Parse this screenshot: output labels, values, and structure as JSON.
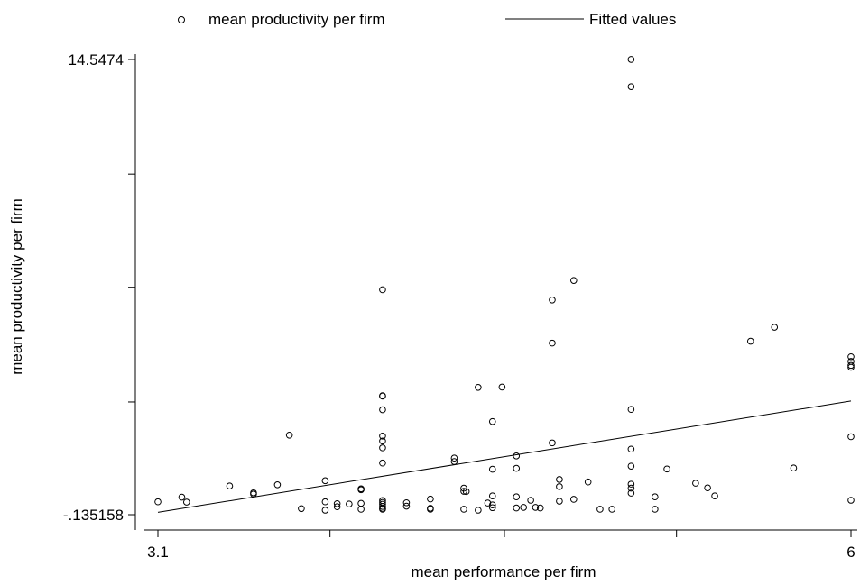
{
  "chart_data": {
    "type": "scatter",
    "title": "",
    "xlabel": "mean performance per firm",
    "ylabel": "mean productivity per firm",
    "xlim": [
      3.1,
      6
    ],
    "ylim": [
      -0.135158,
      14.5474
    ],
    "x_tick_labels": [
      {
        "value": 3.1,
        "label": "3.1"
      },
      {
        "value": 6,
        "label": "6"
      }
    ],
    "x_minor_ticks": [
      3.82,
      4.55,
      5.27
    ],
    "y_tick_labels": [
      {
        "value": 14.5474,
        "label": "14.5474"
      },
      {
        "value": -0.135158,
        "label": "-.135158"
      }
    ],
    "y_minor_ticks": [
      3.5,
      7.2,
      10.85
    ],
    "legend": {
      "position": "top",
      "entries": [
        "mean productivity per firm",
        "Fitted values"
      ]
    },
    "grid": false,
    "series": [
      {
        "name": "mean productivity per firm",
        "type": "scatter",
        "marker": "hollow-circle",
        "color": "#000000",
        "points": [
          [
            3.1,
            0.28
          ],
          [
            3.2,
            0.43
          ],
          [
            3.22,
            0.27
          ],
          [
            3.4,
            0.79
          ],
          [
            3.5,
            0.53
          ],
          [
            3.5,
            0.57
          ],
          [
            3.6,
            0.83
          ],
          [
            3.65,
            2.43
          ],
          [
            3.7,
            0.06
          ],
          [
            3.8,
            0.96
          ],
          [
            3.8,
            0.28
          ],
          [
            3.8,
            0.01
          ],
          [
            3.85,
            0.22
          ],
          [
            3.85,
            0.12
          ],
          [
            3.95,
            0.67
          ],
          [
            3.95,
            0.7
          ],
          [
            3.95,
            0.23
          ],
          [
            3.95,
            0.04
          ],
          [
            3.9,
            0.21
          ],
          [
            4.04,
            7.12
          ],
          [
            4.04,
            3.7
          ],
          [
            4.04,
            3.69
          ],
          [
            4.04,
            3.25
          ],
          [
            4.04,
            2.4
          ],
          [
            4.04,
            2.24
          ],
          [
            4.04,
            2.02
          ],
          [
            4.04,
            1.53
          ],
          [
            4.04,
            0.32
          ],
          [
            4.04,
            0.26
          ],
          [
            4.04,
            0.2
          ],
          [
            4.04,
            0.13
          ],
          [
            4.04,
            0.07
          ],
          [
            4.04,
            0.04
          ],
          [
            4.14,
            0.25
          ],
          [
            4.14,
            0.14
          ],
          [
            4.24,
            0.37
          ],
          [
            4.24,
            0.07
          ],
          [
            4.24,
            0.04
          ],
          [
            4.34,
            1.69
          ],
          [
            4.34,
            1.58
          ],
          [
            4.38,
            0.72
          ],
          [
            4.38,
            0.62
          ],
          [
            4.39,
            0.61
          ],
          [
            4.38,
            0.04
          ],
          [
            4.44,
            3.97
          ],
          [
            4.44,
            0.01
          ],
          [
            4.48,
            0.24
          ],
          [
            4.5,
            2.87
          ],
          [
            4.5,
            1.33
          ],
          [
            4.5,
            0.47
          ],
          [
            4.5,
            0.18
          ],
          [
            4.5,
            0.09
          ],
          [
            4.54,
            3.98
          ],
          [
            4.6,
            1.76
          ],
          [
            4.6,
            1.36
          ],
          [
            4.6,
            0.44
          ],
          [
            4.6,
            0.08
          ],
          [
            4.63,
            0.1
          ],
          [
            4.66,
            0.33
          ],
          [
            4.68,
            0.1
          ],
          [
            4.7,
            0.08
          ],
          [
            4.75,
            6.79
          ],
          [
            4.75,
            5.4
          ],
          [
            4.75,
            2.18
          ],
          [
            4.78,
            1.0
          ],
          [
            4.78,
            0.77
          ],
          [
            4.78,
            0.3
          ],
          [
            4.84,
            7.42
          ],
          [
            4.84,
            0.36
          ],
          [
            4.9,
            0.92
          ],
          [
            4.95,
            0.04
          ],
          [
            5.0,
            0.04
          ],
          [
            5.08,
            14.55
          ],
          [
            5.08,
            13.67
          ],
          [
            5.08,
            3.26
          ],
          [
            5.08,
            1.98
          ],
          [
            5.08,
            1.43
          ],
          [
            5.08,
            0.85
          ],
          [
            5.08,
            0.72
          ],
          [
            5.08,
            0.56
          ],
          [
            5.18,
            0.44
          ],
          [
            5.18,
            0.04
          ],
          [
            5.23,
            1.34
          ],
          [
            5.35,
            0.88
          ],
          [
            5.4,
            0.73
          ],
          [
            5.43,
            0.47
          ],
          [
            5.58,
            5.46
          ],
          [
            5.68,
            5.91
          ],
          [
            5.76,
            1.37
          ],
          [
            6.0,
            4.96
          ],
          [
            6.0,
            4.81
          ],
          [
            6.0,
            4.68
          ],
          [
            6.0,
            4.62
          ],
          [
            6.0,
            2.38
          ],
          [
            6.0,
            0.33
          ]
        ]
      },
      {
        "name": "Fitted values",
        "type": "line",
        "color": "#000000",
        "points": [
          [
            3.1,
            -0.06
          ],
          [
            6.0,
            3.53
          ]
        ]
      }
    ]
  }
}
